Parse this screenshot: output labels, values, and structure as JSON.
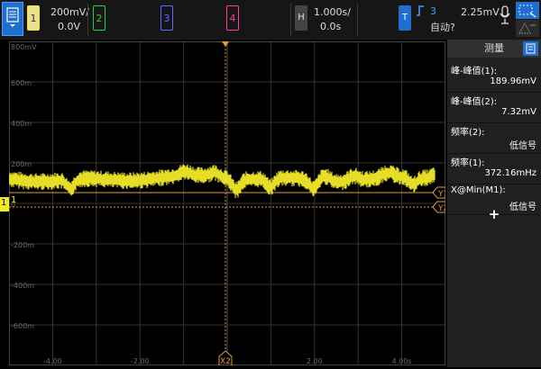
{
  "channels": [
    {
      "num": "1",
      "color": "#f2ea28",
      "scale": "200mV/",
      "offset": "0.0V"
    },
    {
      "num": "2",
      "color": "#2ecc40",
      "scale": "",
      "offset": ""
    },
    {
      "num": "3",
      "color": "#5a6cff",
      "scale": "",
      "offset": ""
    },
    {
      "num": "4",
      "color": "#ff3aa0",
      "scale": "",
      "offset": ""
    }
  ],
  "horizontal": {
    "button": "H",
    "timebase": "1.000s/",
    "delay": "0.0s"
  },
  "trigger": {
    "button": "T",
    "source": "3",
    "level": "2.25mV",
    "mode": "自动?"
  },
  "yaxis_labels": [
    "800mV",
    "600m",
    "400m",
    "200m",
    "0",
    "-200m",
    "-400m",
    "-600m"
  ],
  "xaxis_labels": [
    "-4.00",
    "-2.00",
    "",
    "2.00",
    "4.00s"
  ],
  "cursors": {
    "x2": "X2",
    "y1": "Y1",
    "y2": "Y2"
  },
  "ground_marker": "1",
  "measure_panel": {
    "title": "测量",
    "items": [
      {
        "label": "峰-峰值(1):",
        "value": "189.96mV"
      },
      {
        "label": "峰-峰值(2):",
        "value": "7.32mV"
      },
      {
        "label": "频率(2):",
        "value": "低信号"
      },
      {
        "label": "频率(1):",
        "value": "372.16mHz"
      },
      {
        "label": "X@Min(M1):",
        "value": "低信号"
      }
    ],
    "add_label": "+"
  },
  "colors": {
    "ch1": "#f2ea28",
    "cursor": "#e89a3c",
    "trigger": "#1e6fd0"
  }
}
